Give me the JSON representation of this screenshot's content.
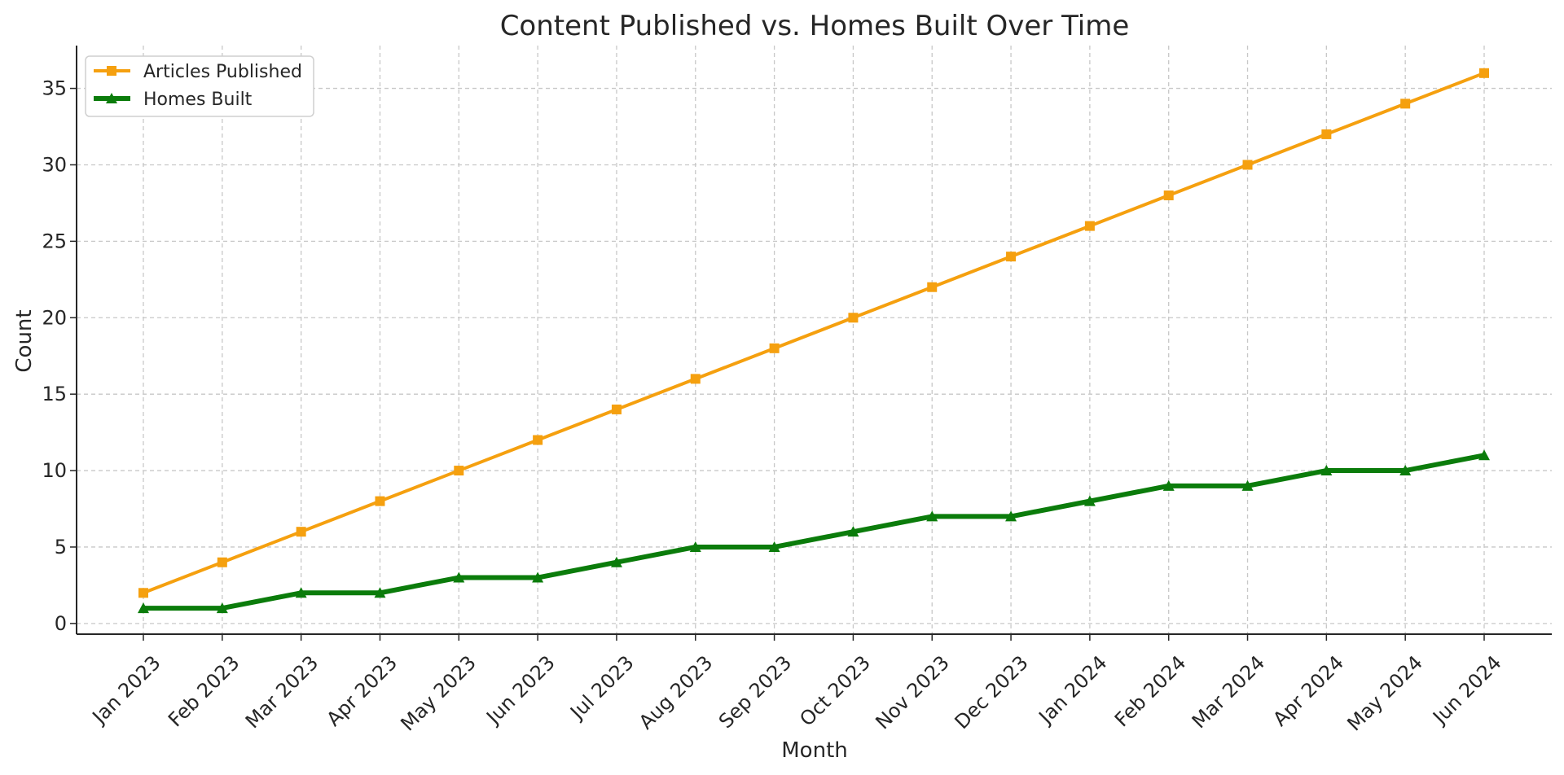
{
  "chart_data": {
    "type": "line",
    "title": "Content Published vs. Homes Built Over Time",
    "xlabel": "Month",
    "ylabel": "Count",
    "categories": [
      "Jan 2023",
      "Feb 2023",
      "Mar 2023",
      "Apr 2023",
      "May 2023",
      "Jun 2023",
      "Jul 2023",
      "Aug 2023",
      "Sep 2023",
      "Oct 2023",
      "Nov 2023",
      "Dec 2023",
      "Jan 2024",
      "Feb 2024",
      "Mar 2024",
      "Apr 2024",
      "May 2024",
      "Jun 2024"
    ],
    "ylim": [
      -0.7,
      37.8
    ],
    "yticks": [
      "0",
      "5",
      "10",
      "15",
      "20",
      "25",
      "30",
      "35"
    ],
    "grid": true,
    "legend_position": "top-left",
    "series": [
      {
        "name": "Articles Published",
        "color": "#f5a00f",
        "marker": "square",
        "values": [
          2,
          4,
          6,
          8,
          10,
          12,
          14,
          16,
          18,
          20,
          22,
          24,
          26,
          28,
          30,
          32,
          34,
          36
        ]
      },
      {
        "name": "Homes Built",
        "color": "#0b7c0b",
        "marker": "triangle",
        "values": [
          1,
          1,
          2,
          2,
          3,
          3,
          4,
          5,
          5,
          6,
          7,
          7,
          8,
          9,
          9,
          10,
          10,
          11
        ]
      }
    ]
  }
}
